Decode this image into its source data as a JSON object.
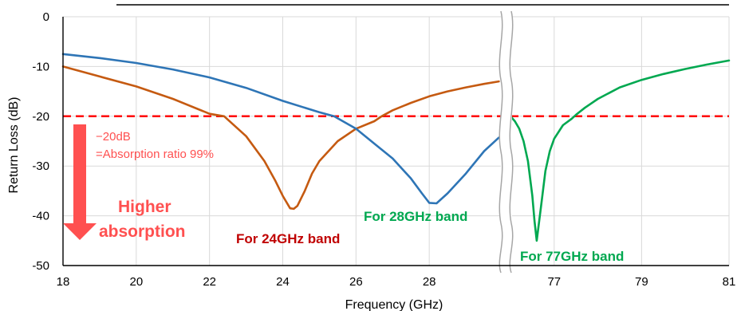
{
  "chart_data": {
    "type": "line",
    "title": "",
    "xlabel": "Frequency (GHz)",
    "ylabel": "Return Loss (dB)",
    "ylim": [
      -50,
      0
    ],
    "yticks": [
      0,
      -10,
      -20,
      -30,
      -40,
      -50
    ],
    "grid": true,
    "axis_break": "between 30 and 76 GHz",
    "panels": [
      {
        "name": "low",
        "xlim": [
          18,
          30
        ],
        "xticks": [
          18,
          20,
          22,
          24,
          26,
          28
        ]
      },
      {
        "name": "high",
        "xlim": [
          76,
          81
        ],
        "xticks": [
          77,
          79,
          81
        ]
      }
    ],
    "threshold": {
      "y": -20,
      "color": "#ff0000"
    },
    "series": [
      {
        "panel": "low",
        "color": "#c55a11",
        "x": [
          18,
          19,
          20,
          21,
          22,
          22.4,
          23,
          23.5,
          23.8,
          24,
          24.2,
          24.3,
          24.4,
          24.6,
          24.8,
          25,
          25.5,
          26,
          26.5,
          26.7,
          27,
          27.5,
          28,
          28.5,
          29,
          29.5,
          29.9
        ],
        "y": [
          -10,
          -12,
          -14,
          -16.5,
          -19.5,
          -20,
          -24,
          -29,
          -33,
          -36,
          -38.5,
          -38.6,
          -38,
          -35,
          -31.5,
          -29,
          -25,
          -22.5,
          -21,
          -20,
          -18.8,
          -17.3,
          -16,
          -15,
          -14.2,
          -13.5,
          -13
        ]
      },
      {
        "panel": "low",
        "color": "#2e75b6",
        "x": [
          18,
          19,
          20,
          21,
          22,
          23,
          24,
          25,
          25.4,
          26,
          26.5,
          27,
          27.5,
          27.8,
          28,
          28.2,
          28.5,
          29,
          29.5,
          29.9
        ],
        "y": [
          -7.5,
          -8.3,
          -9.3,
          -10.6,
          -12.2,
          -14.3,
          -16.9,
          -19.2,
          -20,
          -22.5,
          -25.5,
          -28.5,
          -32.5,
          -35.5,
          -37.4,
          -37.5,
          -35.5,
          -31.5,
          -27,
          -24.3
        ]
      },
      {
        "panel": "high",
        "color": "#00a850",
        "x": [
          76,
          76.1,
          76.2,
          76.3,
          76.4,
          76.5,
          76.55,
          76.6,
          76.7,
          76.8,
          76.9,
          77,
          77.2,
          77.4,
          77.5,
          77.7,
          78,
          78.5,
          79,
          79.5,
          80,
          80.5,
          81
        ],
        "y": [
          -20,
          -21,
          -22.5,
          -25,
          -29,
          -36,
          -41,
          -45,
          -38,
          -31,
          -27,
          -24.5,
          -21.8,
          -20.5,
          -19.7,
          -18.3,
          -16.5,
          -14.2,
          -12.7,
          -11.5,
          -10.5,
          -9.6,
          -8.8
        ]
      }
    ],
    "annotations": {
      "threshold_line1": "−20dB",
      "threshold_line2": "=Absorption ratio 99%",
      "higher_line1": "Higher",
      "higher_line2": "absorption",
      "band_24": "For 24GHz band",
      "band_28": "For 28GHz band",
      "band_77": "For 77GHz band"
    },
    "colors": {
      "threshold_text": "#ff5050",
      "arrow": "#ff5050",
      "band_24": "#c00000",
      "band_28": "#00a850",
      "band_77": "#00a850"
    }
  }
}
